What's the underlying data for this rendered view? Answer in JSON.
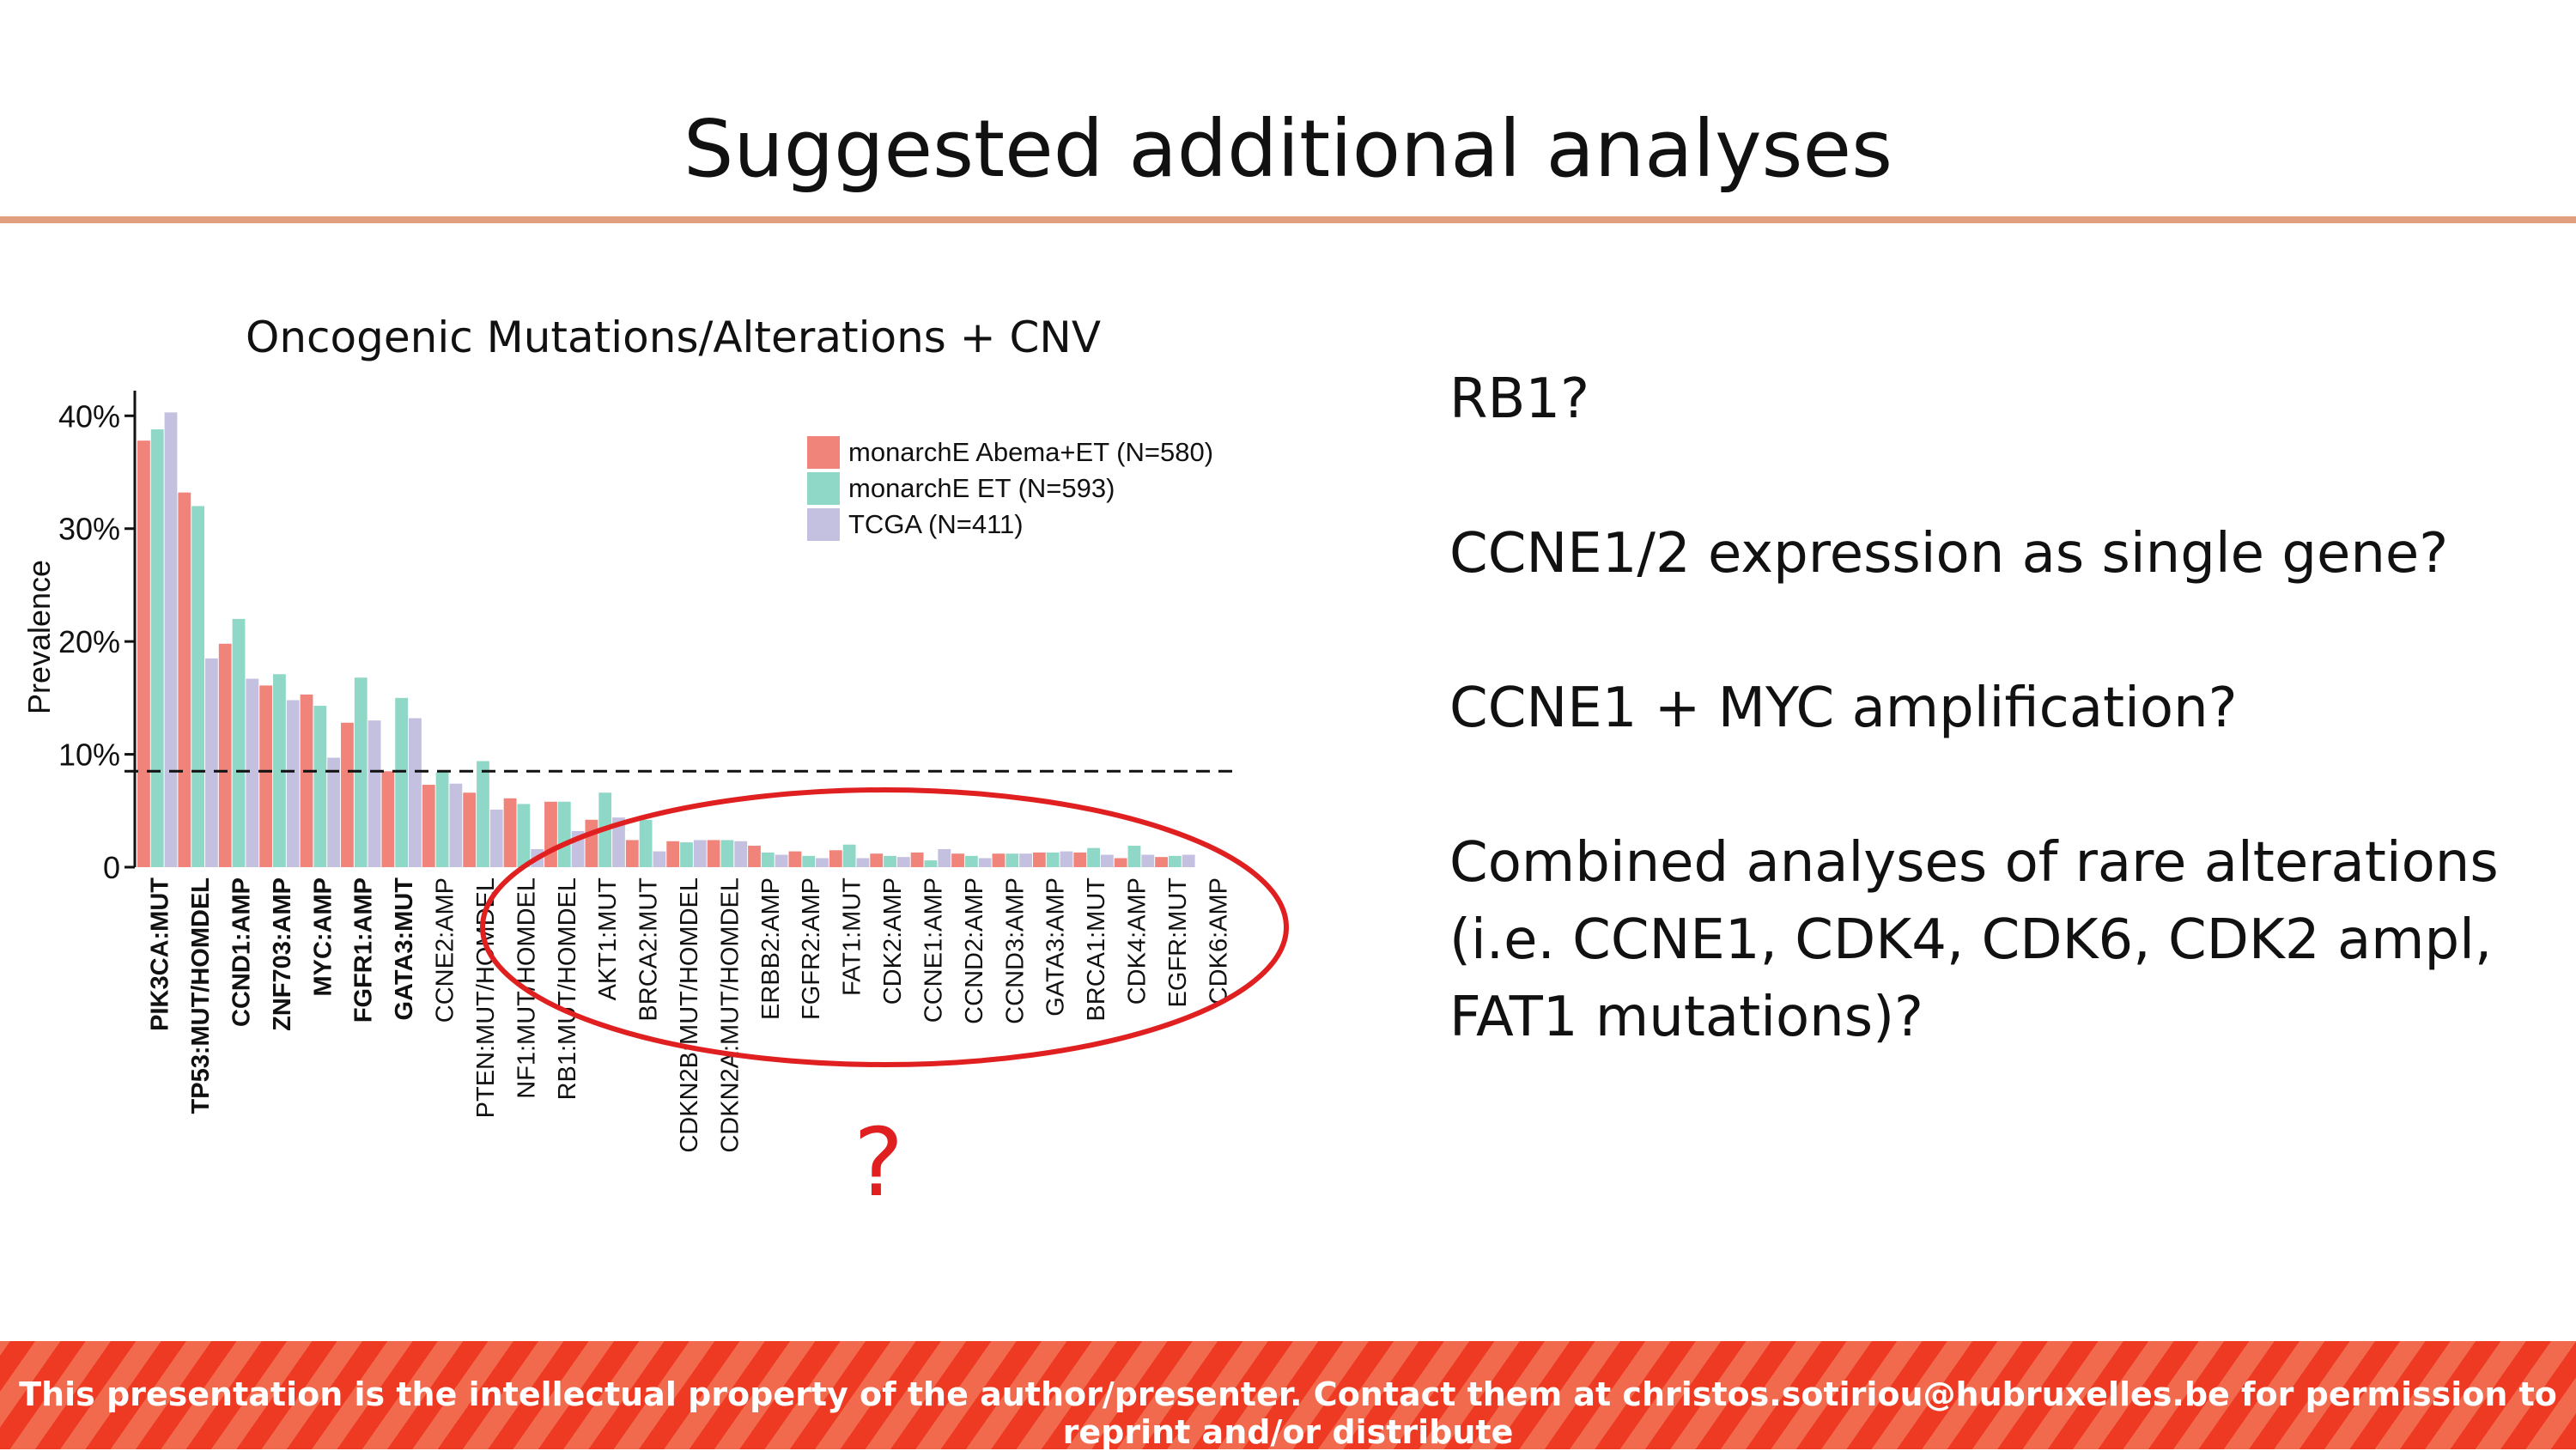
{
  "slide": {
    "title": "Suggested additional analyses",
    "question_mark": "?",
    "bullets": [
      "RB1?",
      "CCNE1/2 expression as single gene?",
      "CCNE1 + MYC amplification?",
      "Combined analyses of rare alterations (i.e. CCNE1, CDK4, CDK6, CDK2 ampl, FAT1 mutations)?"
    ],
    "footer": "This presentation is the intellectual property of the author/presenter. Contact them at christos.sotiriou@hubruxelles.be for permission to reprint and/or distribute"
  },
  "chart_data": {
    "type": "bar",
    "title": "Oncogenic Mutations/Alterations + CNV",
    "ylabel": "Prevalence",
    "xlabel": "",
    "ylim": [
      0,
      0.42
    ],
    "yticks": [
      {
        "value": 0,
        "label": "0"
      },
      {
        "value": 0.1,
        "label": "10%"
      },
      {
        "value": 0.2,
        "label": "20%"
      },
      {
        "value": 0.3,
        "label": "30%"
      },
      {
        "value": 0.4,
        "label": "40%"
      }
    ],
    "threshold": 0.085,
    "legend_position": "top-right",
    "categories": [
      "PIK3CA:MUT",
      "TP53:MUT/HOMDEL",
      "CCND1:AMP",
      "ZNF703:AMP",
      "MYC:AMP",
      "FGFR1:AMP",
      "GATA3:MUT",
      "CCNE2:AMP",
      "PTEN:MUT/HOMDEL",
      "NF1:MUT/HOMDEL",
      "RB1:MUT/HOMDEL",
      "AKT1:MUT",
      "BRCA2:MUT",
      "CDKN2B:MUT/HOMDEL",
      "CDKN2A:MUT/HOMDEL",
      "ERBB2:AMP",
      "FGFR2:AMP",
      "FAT1:MUT",
      "CDK2:AMP",
      "CCNE1:AMP",
      "CCND2:AMP",
      "CCND3:AMP",
      "GATA3:AMP",
      "BRCA1:MUT",
      "CDK4:AMP",
      "EGFR:MUT",
      "CDK6:AMP"
    ],
    "bold_categories": [
      "PIK3CA:MUT",
      "TP53:MUT/HOMDEL",
      "CCND1:AMP",
      "ZNF703:AMP",
      "MYC:AMP",
      "FGFR1:AMP",
      "GATA3:MUT"
    ],
    "series": [
      {
        "name": "monarchE Abema+ET (N=580)",
        "color": "#f0837a",
        "values": [
          0.378,
          0.332,
          0.198,
          0.161,
          0.153,
          0.128,
          0.085,
          0.073,
          0.066,
          0.061,
          0.058,
          0.042,
          0.024,
          0.023,
          0.024,
          0.019,
          0.014,
          0.015,
          0.012,
          0.013,
          0.012,
          0.012,
          0.013,
          0.013,
          0.008,
          0.009,
          0.0
        ]
      },
      {
        "name": "monarchE ET (N=593)",
        "color": "#8fd8c8",
        "values": [
          0.388,
          0.32,
          0.22,
          0.171,
          0.143,
          0.168,
          0.15,
          0.084,
          0.094,
          0.056,
          0.058,
          0.066,
          0.042,
          0.022,
          0.024,
          0.013,
          0.01,
          0.02,
          0.01,
          0.006,
          0.01,
          0.012,
          0.013,
          0.017,
          0.019,
          0.01,
          0.0
        ]
      },
      {
        "name": "TCGA (N=411)",
        "color": "#c4c0e0",
        "values": [
          0.403,
          0.185,
          0.167,
          0.148,
          0.097,
          0.13,
          0.132,
          0.074,
          0.051,
          0.016,
          0.032,
          0.044,
          0.014,
          0.024,
          0.023,
          0.011,
          0.008,
          0.008,
          0.009,
          0.016,
          0.008,
          0.012,
          0.014,
          0.011,
          0.011,
          0.011,
          0.0
        ]
      }
    ]
  }
}
